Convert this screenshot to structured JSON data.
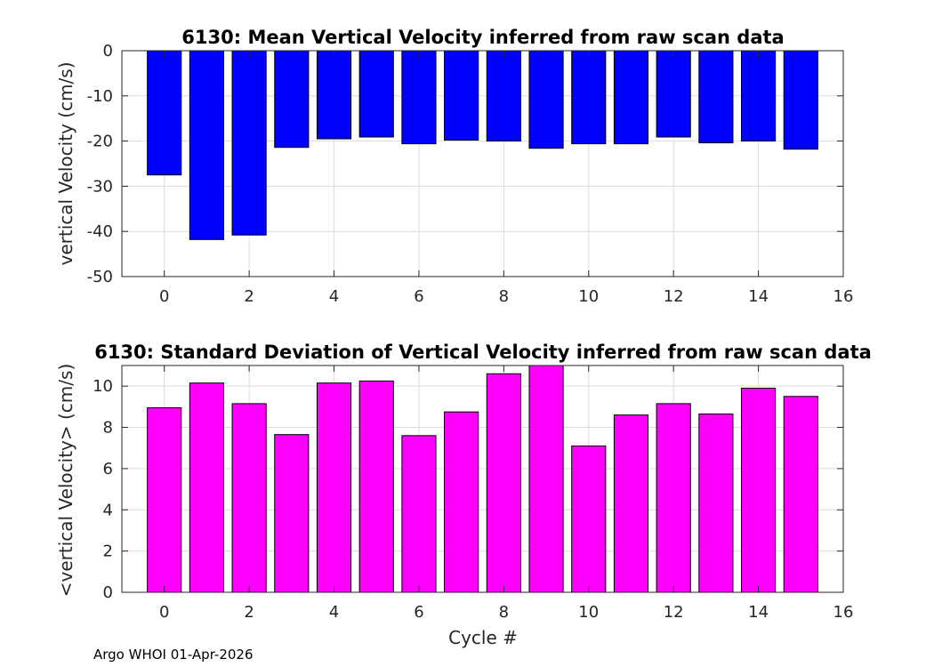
{
  "chart_data": [
    {
      "type": "bar",
      "title": "6130: Mean Vertical Velocity inferred from raw scan data",
      "xlabel": "",
      "ylabel": "vertical Velocity (cm/s)",
      "x": [
        0,
        1,
        2,
        3,
        4,
        5,
        6,
        7,
        8,
        9,
        10,
        11,
        12,
        13,
        14,
        15
      ],
      "values": [
        -27.5,
        -41.8,
        -40.8,
        -21.4,
        -19.5,
        -19.1,
        -20.6,
        -19.8,
        -20.0,
        -21.6,
        -20.6,
        -20.6,
        -19.1,
        -20.4,
        -20.0,
        -21.8
      ],
      "xlim": [
        -1,
        16
      ],
      "ylim": [
        -50,
        0
      ],
      "xticks": [
        0,
        2,
        4,
        6,
        8,
        10,
        12,
        14,
        16
      ],
      "yticks": [
        -50,
        -40,
        -30,
        -20,
        -10,
        0
      ],
      "bar_color": "#0000ff",
      "grid": true
    },
    {
      "type": "bar",
      "title": "6130: Standard Deviation of Vertical Velocity inferred from raw scan data",
      "xlabel": "Cycle #",
      "ylabel": "<vertical Velocity> (cm/s)",
      "x": [
        0,
        1,
        2,
        3,
        4,
        5,
        6,
        7,
        8,
        9,
        10,
        11,
        12,
        13,
        14,
        15
      ],
      "values": [
        8.95,
        10.15,
        9.15,
        7.65,
        10.15,
        10.25,
        7.6,
        8.75,
        10.6,
        11.0,
        7.1,
        8.6,
        9.15,
        8.65,
        9.9,
        9.5
      ],
      "xlim": [
        -1,
        16
      ],
      "ylim": [
        0,
        11
      ],
      "xticks": [
        0,
        2,
        4,
        6,
        8,
        10,
        12,
        14,
        16
      ],
      "yticks": [
        0,
        2,
        4,
        6,
        8,
        10
      ],
      "bar_color": "#ff00ff",
      "grid": true
    }
  ],
  "footer": "Argo WHOI 01-Apr-2026"
}
